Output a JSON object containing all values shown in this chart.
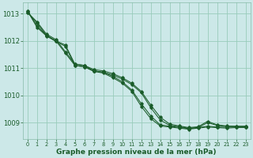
{
  "bg_color": "#cce8e8",
  "grid_color": "#99ccbb",
  "line_color": "#1a5c2a",
  "xlabel": "Graphe pression niveau de la mer (hPa)",
  "xlim": [
    -0.5,
    23.5
  ],
  "ylim": [
    1008.4,
    1013.4
  ],
  "yticks": [
    1009,
    1010,
    1011,
    1012,
    1013
  ],
  "xticks": [
    0,
    1,
    2,
    3,
    4,
    5,
    6,
    7,
    8,
    9,
    10,
    11,
    12,
    13,
    14,
    15,
    16,
    17,
    18,
    19,
    20,
    21,
    22,
    23
  ],
  "series1": [
    1013.1,
    1012.55,
    1012.2,
    1012.0,
    1011.85,
    1011.15,
    1011.1,
    1010.95,
    1010.9,
    1010.8,
    1010.65,
    1010.45,
    1010.15,
    1009.65,
    1009.2,
    1008.95,
    1008.88,
    1008.82,
    1008.85,
    1009.05,
    1008.92,
    1008.88,
    1008.87,
    1008.87
  ],
  "series2": [
    1013.1,
    1012.5,
    1012.18,
    1011.98,
    1011.8,
    1011.1,
    1011.05,
    1010.9,
    1010.85,
    1010.75,
    1010.6,
    1010.4,
    1010.1,
    1009.55,
    1009.1,
    1008.9,
    1008.85,
    1008.8,
    1008.82,
    1009.0,
    1008.9,
    1008.86,
    1008.86,
    1008.86
  ],
  "series3": [
    1013.05,
    1012.7,
    1012.25,
    1012.05,
    1011.6,
    1011.15,
    1011.1,
    1010.9,
    1010.85,
    1010.7,
    1010.5,
    1010.2,
    1009.7,
    1009.25,
    1008.92,
    1008.87,
    1008.83,
    1008.78,
    1008.82,
    1008.87,
    1008.84,
    1008.83,
    1008.84,
    1008.84
  ],
  "series4": [
    1013.05,
    1012.65,
    1012.2,
    1012.0,
    1011.55,
    1011.1,
    1011.05,
    1010.88,
    1010.82,
    1010.65,
    1010.45,
    1010.15,
    1009.6,
    1009.15,
    1008.88,
    1008.84,
    1008.8,
    1008.76,
    1008.8,
    1008.84,
    1008.82,
    1008.8,
    1008.82,
    1008.82
  ]
}
